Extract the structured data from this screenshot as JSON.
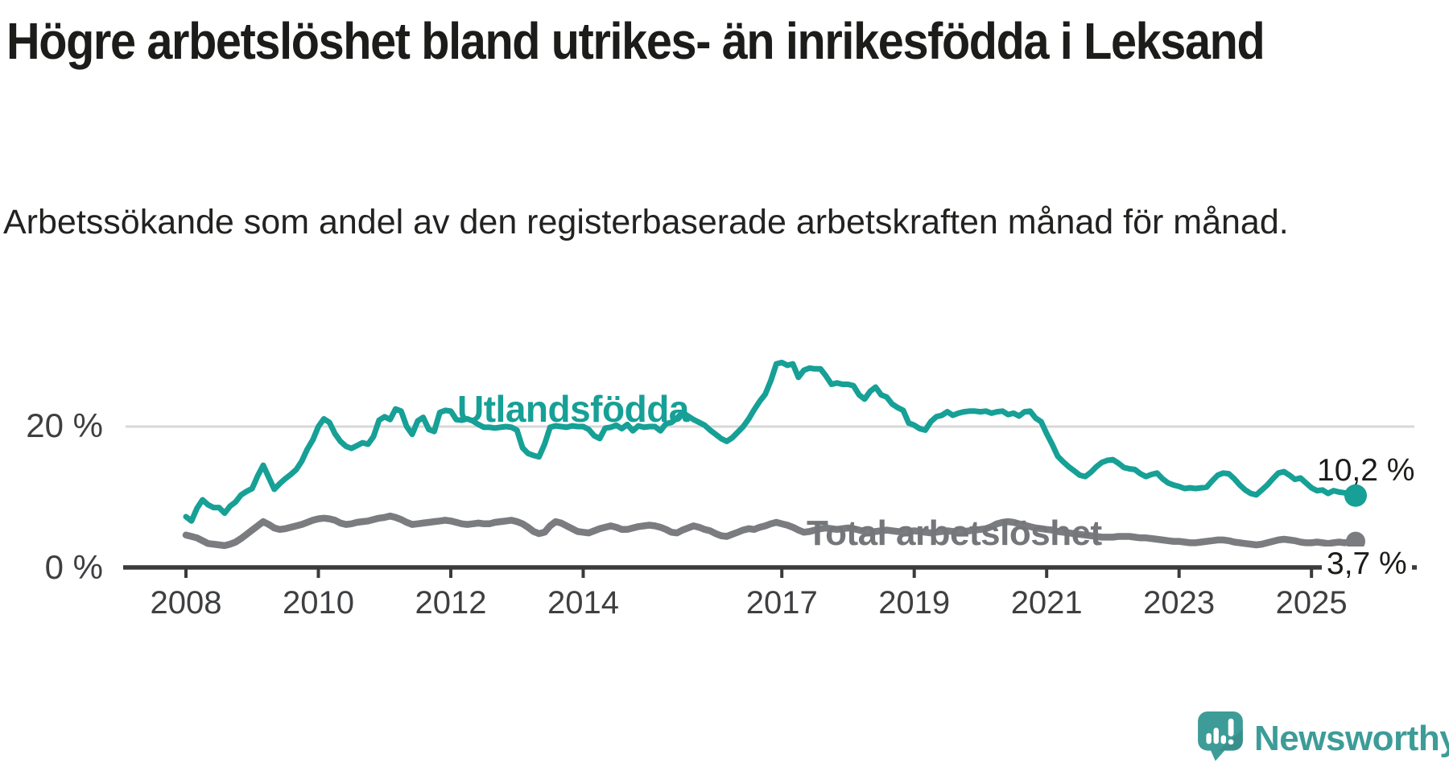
{
  "title": "Högre arbetslöshet bland utrikes- än inrikesfödda i Leksand",
  "subtitle": "Arbetssökande som andel av den registerbaserade arbetskraften månad för månad.",
  "branding": {
    "logo_text": "Newsworthy",
    "logo_color": "#3d9c97"
  },
  "chart_data": {
    "type": "line",
    "title": "Högre arbetslöshet bland utrikes- än inrikesfödda i Leksand",
    "subtitle": "Arbetssökande som andel av den registerbaserade arbetskraften månad för månad.",
    "x_unit": "month",
    "x_start": "2008-01",
    "x_end": "2025-09",
    "x_tick_labels": [
      "2008",
      "2010",
      "2012",
      "2014",
      "2017",
      "2019",
      "2021",
      "2023",
      "2025"
    ],
    "y_tick_labels": [
      "0 %",
      "20 %"
    ],
    "ylim": [
      0,
      31
    ],
    "grid": "horizontal gridline at 20% only",
    "legend_position": "inline labels on lines, value labels at line ends",
    "colors": {
      "accent_teal": "#16a096",
      "neutral_gray": "#7b7c80",
      "axis": "#3b3b3b",
      "gridline": "#d8d8d8"
    },
    "series": [
      {
        "name": "Utlandsfödda",
        "color": "#16a096",
        "end_label": "10,2 %",
        "end_value": 10.2,
        "values": [
          7.2,
          6.6,
          8.4,
          9.6,
          8.9,
          8.5,
          8.5,
          7.7,
          8.7,
          9.3,
          10.3,
          10.8,
          11.2,
          13.0,
          14.5,
          12.8,
          11.1,
          11.9,
          12.6,
          13.2,
          13.9,
          15.1,
          16.8,
          18.1,
          20.0,
          21.1,
          20.6,
          19.0,
          17.9,
          17.2,
          16.9,
          17.3,
          17.7,
          17.5,
          18.6,
          20.9,
          21.4,
          21.0,
          22.5,
          22.2,
          20.0,
          18.9,
          20.8,
          21.3,
          19.6,
          19.3,
          22.0,
          22.3,
          22.2,
          21.0,
          20.9,
          21.1,
          20.8,
          20.3,
          19.9,
          19.9,
          19.8,
          19.9,
          20.0,
          19.9,
          19.5,
          17.0,
          16.2,
          15.9,
          15.7,
          17.5,
          19.9,
          20.1,
          20.0,
          19.9,
          20.1,
          20.0,
          20.0,
          19.6,
          18.7,
          18.3,
          19.8,
          19.9,
          20.2,
          19.7,
          20.3,
          19.4,
          20.1,
          19.9,
          20.0,
          20.0,
          19.4,
          20.4,
          20.6,
          21.2,
          22.0,
          21.5,
          21.0,
          20.6,
          20.2,
          19.5,
          18.9,
          18.3,
          17.9,
          18.4,
          19.2,
          20.0,
          21.1,
          22.4,
          23.6,
          24.6,
          26.5,
          28.9,
          29.1,
          28.7,
          28.9,
          27.0,
          28.0,
          28.3,
          28.2,
          28.2,
          27.2,
          26.0,
          26.2,
          26.0,
          26.0,
          25.8,
          24.5,
          23.9,
          25.0,
          25.6,
          24.5,
          24.2,
          23.2,
          22.7,
          22.3,
          20.5,
          20.2,
          19.7,
          19.5,
          20.7,
          21.4,
          21.6,
          22.1,
          21.6,
          21.9,
          22.1,
          22.2,
          22.2,
          22.1,
          22.2,
          21.9,
          22.1,
          22.2,
          21.7,
          21.9,
          21.5,
          22.1,
          22.2,
          21.2,
          20.7,
          19.0,
          17.5,
          15.8,
          15.0,
          14.3,
          13.7,
          13.1,
          12.9,
          13.5,
          14.3,
          14.9,
          15.2,
          15.3,
          14.8,
          14.2,
          14.0,
          13.9,
          13.3,
          12.9,
          13.2,
          13.4,
          12.6,
          12.0,
          11.7,
          11.5,
          11.2,
          11.3,
          11.2,
          11.3,
          11.4,
          12.3,
          13.1,
          13.4,
          13.3,
          12.6,
          11.7,
          11.0,
          10.5,
          10.3,
          11.0,
          11.7,
          12.6,
          13.4,
          13.6,
          13.1,
          12.5,
          12.7,
          12.0,
          11.3,
          10.9,
          11.0,
          10.5,
          10.9,
          10.7,
          10.6,
          10.4,
          10.2
        ]
      },
      {
        "name": "Total arbetslöshet",
        "color": "#7b7c80",
        "end_label": "3,7 %",
        "end_value": 3.7,
        "values": [
          4.6,
          4.4,
          4.2,
          3.8,
          3.4,
          3.3,
          3.2,
          3.1,
          3.3,
          3.6,
          4.1,
          4.7,
          5.3,
          5.9,
          6.5,
          6.1,
          5.6,
          5.4,
          5.5,
          5.7,
          5.9,
          6.1,
          6.4,
          6.7,
          6.9,
          7.0,
          6.9,
          6.7,
          6.3,
          6.1,
          6.2,
          6.4,
          6.5,
          6.6,
          6.8,
          7.0,
          7.1,
          7.3,
          7.1,
          6.8,
          6.4,
          6.1,
          6.2,
          6.3,
          6.4,
          6.5,
          6.6,
          6.7,
          6.6,
          6.4,
          6.2,
          6.1,
          6.2,
          6.3,
          6.2,
          6.2,
          6.4,
          6.5,
          6.6,
          6.7,
          6.5,
          6.2,
          5.7,
          5.1,
          4.8,
          5.0,
          5.9,
          6.5,
          6.3,
          5.9,
          5.5,
          5.1,
          5.0,
          4.9,
          5.2,
          5.5,
          5.7,
          5.9,
          5.7,
          5.4,
          5.4,
          5.6,
          5.8,
          5.9,
          6.0,
          5.9,
          5.7,
          5.4,
          5.0,
          4.9,
          5.3,
          5.6,
          5.9,
          5.7,
          5.4,
          5.2,
          4.8,
          4.5,
          4.4,
          4.7,
          5.0,
          5.3,
          5.5,
          5.4,
          5.7,
          5.9,
          6.2,
          6.4,
          6.2,
          6.0,
          5.7,
          5.3,
          5.0,
          5.1,
          5.3,
          5.5,
          5.6,
          5.5,
          5.4,
          5.5,
          5.6,
          5.5,
          5.3,
          5.1,
          5.0,
          5.1,
          5.2,
          5.3,
          5.2,
          5.1,
          5.0,
          5.1,
          5.2,
          5.1,
          5.0,
          4.9,
          5.0,
          5.1,
          5.2,
          5.1,
          5.0,
          5.1,
          5.2,
          5.3,
          5.4,
          5.5,
          5.8,
          6.2,
          6.4,
          6.5,
          6.4,
          6.2,
          6.0,
          5.8,
          5.6,
          5.5,
          5.4,
          5.3,
          5.1,
          5.0,
          4.9,
          4.8,
          4.7,
          4.6,
          4.5,
          4.4,
          4.3,
          4.3,
          4.3,
          4.4,
          4.4,
          4.4,
          4.3,
          4.2,
          4.2,
          4.1,
          4.0,
          3.9,
          3.8,
          3.7,
          3.7,
          3.6,
          3.5,
          3.5,
          3.6,
          3.7,
          3.8,
          3.9,
          3.9,
          3.8,
          3.6,
          3.5,
          3.4,
          3.3,
          3.2,
          3.3,
          3.5,
          3.7,
          3.9,
          4.0,
          3.9,
          3.8,
          3.6,
          3.5,
          3.5,
          3.6,
          3.5,
          3.4,
          3.5,
          3.6,
          3.5,
          3.6,
          3.7
        ]
      }
    ]
  }
}
